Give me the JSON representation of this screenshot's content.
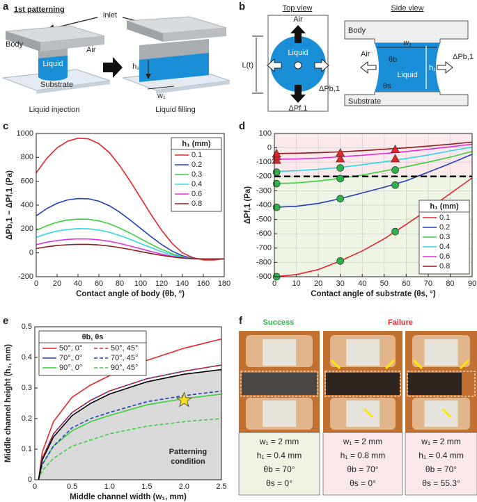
{
  "panel_labels": [
    "a",
    "b",
    "c",
    "d",
    "e",
    "f"
  ],
  "panel_a": {
    "heading": "1st patterning",
    "inlet": "inlet",
    "body": "Body",
    "air": "Air",
    "liquid": "Liquid",
    "substrate": "Substrate",
    "h": "h₁",
    "w": "w₁",
    "caption_left": "Liquid injection",
    "caption_right": "Liquid filling"
  },
  "panel_b": {
    "top_view": "Top view",
    "side_view": "Side view",
    "air_top": "Air",
    "liquid_top": "Liquid",
    "L": "L(t)",
    "dpb_top": "ΔPb,1",
    "dpf": "ΔPf,1",
    "body": "Body",
    "air_side": "Air",
    "w": "w₁",
    "theta_b": "θb",
    "liquid_side": "Liquid",
    "h": "h₁",
    "dpb_side": "ΔPb,1",
    "theta_s": "θs",
    "substrate": "Substrate"
  },
  "chart_data": [
    {
      "type": "line",
      "x_label": "Contact angle of body (θb, °)",
      "y_label": "ΔPb,1 − ΔPf,1 (Pa)",
      "x": [
        0,
        10,
        20,
        30,
        40,
        50,
        60,
        70,
        80,
        90,
        100,
        110,
        120,
        130,
        140,
        150,
        160,
        170,
        180
      ],
      "xlim": [
        0,
        180
      ],
      "xticks": [
        0,
        20,
        40,
        60,
        80,
        100,
        120,
        140,
        160,
        180
      ],
      "ylim": [
        -200,
        1000
      ],
      "yticks": [
        -200,
        0,
        200,
        400,
        600,
        800,
        1000
      ],
      "legend_title": "h₁ (mm)",
      "legend": "upper right",
      "series": [
        {
          "name": "0.1",
          "color": "#e8242a",
          "values": [
            670,
            790,
            880,
            935,
            960,
            955,
            915,
            840,
            730,
            600,
            460,
            320,
            190,
            80,
            0,
            -40,
            -60,
            -60,
            -50
          ]
        },
        {
          "name": "0.2",
          "color": "#1f3fbf",
          "values": [
            310,
            370,
            415,
            443,
            455,
            453,
            433,
            395,
            340,
            275,
            205,
            135,
            70,
            15,
            -25,
            -45,
            -55,
            -55,
            -50
          ]
        },
        {
          "name": "0.3",
          "color": "#3ccf3c",
          "values": [
            188,
            227,
            257,
            275,
            283,
            282,
            268,
            244,
            207,
            165,
            118,
            72,
            29,
            -7,
            -33,
            -47,
            -53,
            -53,
            -50
          ]
        },
        {
          "name": "0.4",
          "color": "#2fd6ea",
          "values": [
            130,
            160,
            183,
            196,
            203,
            201,
            191,
            173,
            145,
            113,
            78,
            43,
            10,
            -18,
            -38,
            -48,
            -52,
            -52,
            -50
          ]
        },
        {
          "name": "0.6",
          "color": "#e030d8",
          "values": [
            69,
            89,
            103,
            113,
            117,
            116,
            109,
            97,
            79,
            57,
            34,
            11,
            -10,
            -29,
            -42,
            -48,
            -52,
            -52,
            -50
          ]
        },
        {
          "name": "0.8",
          "color": "#8b1a1a",
          "values": [
            36,
            51,
            62,
            68,
            71,
            71,
            66,
            57,
            44,
            28,
            11,
            -6,
            -21,
            -34,
            -44,
            -49,
            -51,
            -51,
            -50
          ]
        }
      ]
    },
    {
      "type": "line",
      "x_label": "Contact angle of substrate (θs, °)",
      "y_label": "ΔPf,1 (Pa)",
      "x": [
        0,
        10,
        20,
        30,
        40,
        50,
        60,
        70,
        80,
        90
      ],
      "xlim": [
        0,
        90
      ],
      "xticks": [
        0,
        10,
        20,
        30,
        40,
        50,
        60,
        70,
        80,
        90
      ],
      "ylim": [
        -900,
        100
      ],
      "yticks": [
        -900,
        -800,
        -700,
        -600,
        -500,
        -400,
        -300,
        -200,
        -100,
        0,
        100
      ],
      "grid": true,
      "threshold": -200,
      "backgrounds": {
        "above": "#fbe9ec",
        "below": "#eef5e4"
      },
      "legend_title": "h₁ (mm)",
      "legend": "lower right",
      "series": [
        {
          "name": "0.1",
          "color": "#e8242a",
          "values": [
            -900,
            -885,
            -850,
            -790,
            -720,
            -635,
            -535,
            -430,
            -320,
            -210
          ]
        },
        {
          "name": "0.2",
          "color": "#1f3fbf",
          "values": [
            -415,
            -408,
            -388,
            -355,
            -315,
            -275,
            -230,
            -170,
            -110,
            -45
          ]
        },
        {
          "name": "0.3",
          "color": "#3ccf3c",
          "values": [
            -250,
            -245,
            -232,
            -213,
            -190,
            -162,
            -132,
            -100,
            -65,
            -25
          ]
        },
        {
          "name": "0.4",
          "color": "#2fd6ea",
          "values": [
            -165,
            -160,
            -150,
            -137,
            -118,
            -98,
            -75,
            -50,
            -22,
            5
          ]
        },
        {
          "name": "0.6",
          "color": "#e030d8",
          "values": [
            -80,
            -78,
            -72,
            -62,
            -52,
            -40,
            -26,
            -10,
            7,
            25
          ]
        },
        {
          "name": "0.8",
          "color": "#8b1a1a",
          "values": [
            -40,
            -38,
            -34,
            -28,
            -20,
            -10,
            0,
            12,
            25,
            40
          ]
        }
      ],
      "markers": [
        {
          "shape": "circle",
          "color": "#2db34a",
          "x": [
            1,
            30,
            55,
            1,
            30,
            55,
            1,
            30,
            55,
            1,
            30
          ],
          "y": [
            -900,
            -790,
            -585,
            -415,
            -355,
            -260,
            -250,
            -215,
            -155,
            -170,
            -140
          ]
        },
        {
          "shape": "triangle",
          "color": "#e8242a",
          "x": [
            1,
            1,
            1,
            30,
            30,
            55,
            55
          ],
          "y": [
            -85,
            -60,
            -40,
            -75,
            -35,
            -75,
            -10
          ]
        }
      ]
    },
    {
      "type": "line",
      "x_label": "Middle channel width (w₁, mm)",
      "y_label": "Middle channel height (h₁, mm)",
      "x": [
        0.05,
        0.1,
        0.25,
        0.5,
        0.75,
        1.0,
        1.5,
        2.0,
        2.5
      ],
      "xlim": [
        0,
        2.5
      ],
      "xticks": [
        0,
        0.5,
        {
          "value": 1,
          "label": "1.0"
        },
        1.5,
        {
          "value": 2,
          "label": "2.0"
        },
        2.5
      ],
      "ylim": [
        0,
        0.5
      ],
      "yticks": [
        0,
        0.1,
        0.2,
        0.3,
        0.4,
        0.5
      ],
      "legend_title": "θb, θs",
      "legend": "upper left",
      "legend_columns": 2,
      "series": [
        {
          "name": "50°, 0°",
          "color": "#e8242a",
          "values": [
            0,
            0.09,
            0.19,
            0.27,
            0.31,
            0.34,
            0.39,
            0.43,
            0.46
          ]
        },
        {
          "name": "70°, 0°",
          "color": "#1f3fbf",
          "values": [
            0,
            0.07,
            0.15,
            0.22,
            0.26,
            0.29,
            0.33,
            0.355,
            0.375
          ]
        },
        {
          "name": "90°, 0°",
          "color": "#3ccf3c",
          "values": [
            0,
            0.05,
            0.11,
            0.16,
            0.19,
            0.21,
            0.245,
            0.265,
            0.28
          ]
        },
        {
          "name": "50°, 45°",
          "color": "#e8242a",
          "dash": true,
          "values": [
            0,
            0.07,
            0.15,
            0.22,
            0.26,
            0.29,
            0.33,
            0.355,
            0.375
          ]
        },
        {
          "name": "70°, 45°",
          "color": "#1f3fbf",
          "dash": true,
          "values": [
            0,
            0.05,
            0.11,
            0.17,
            0.2,
            0.22,
            0.255,
            0.275,
            0.29
          ]
        },
        {
          "name": "90°, 45°",
          "color": "#3ccf3c",
          "dash": true,
          "values": [
            0,
            0.03,
            0.07,
            0.11,
            0.13,
            0.15,
            0.175,
            0.19,
            0.2
          ]
        },
        {
          "color": "#000000",
          "fill": "#d9d9d9",
          "values": [
            0,
            0.065,
            0.14,
            0.21,
            0.25,
            0.28,
            0.32,
            0.345,
            0.36
          ]
        }
      ],
      "star": {
        "x": 2.0,
        "y": 0.26,
        "color": "#f5e11e"
      },
      "annotation": [
        "Patterning",
        "condition"
      ]
    }
  ],
  "panel_f": {
    "success": "Success",
    "failure": "Failure",
    "captions": [
      [
        "w₁ = 2 mm",
        "h₁ = 0.4 mm",
        "θb = 70°",
        "θs = 0°"
      ],
      [
        "w₁ = 2 mm",
        "h₁ = 0.8 mm",
        "θb = 70°",
        "θs = 0°"
      ],
      [
        "w₁ = 2 mm",
        "h₁ = 0.4 mm",
        "θb = 70°",
        "θs = 55.3°"
      ]
    ]
  }
}
